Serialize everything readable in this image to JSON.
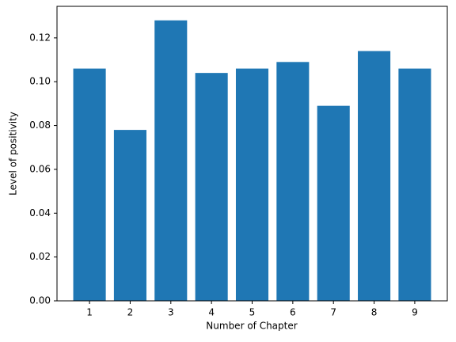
{
  "chart_data": {
    "type": "bar",
    "x_label": "Number of Chapter",
    "y_label": "Level of positivity",
    "categories": [
      "1",
      "2",
      "3",
      "4",
      "5",
      "6",
      "7",
      "8",
      "9"
    ],
    "values": [
      0.106,
      0.078,
      0.128,
      0.104,
      0.106,
      0.109,
      0.089,
      0.114,
      0.106
    ],
    "color": "#1f77b4",
    "ylim": [
      0,
      0.1344
    ],
    "yticks": [
      {
        "value": 0,
        "label": "0.00"
      },
      0.02,
      0.04,
      0.06,
      0.08,
      {
        "value": 0.1,
        "label": "0.10"
      },
      0.12
    ],
    "grid": false
  }
}
